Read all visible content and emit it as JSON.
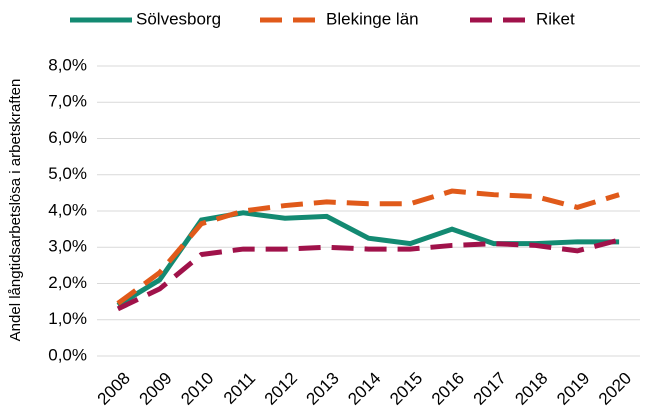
{
  "chart_data": {
    "type": "line",
    "y_label": "Andel långtidsarbetslösa i arbetskraften",
    "categories": [
      "2008",
      "2009",
      "2010",
      "2011",
      "2012",
      "2013",
      "2014",
      "2015",
      "2016",
      "2017",
      "2018",
      "2019",
      "2020"
    ],
    "series": [
      {
        "name": "Sölvesborg",
        "color": "#138a72",
        "dashed": false,
        "values": [
          1.4,
          2.1,
          3.75,
          3.95,
          3.8,
          3.85,
          3.25,
          3.1,
          3.5,
          3.1,
          3.1,
          3.15,
          3.15
        ]
      },
      {
        "name": "Blekinge län",
        "color": "#e05a1a",
        "dashed": true,
        "values": [
          1.45,
          2.3,
          3.65,
          4.0,
          4.15,
          4.25,
          4.2,
          4.2,
          4.55,
          4.45,
          4.4,
          4.1,
          4.45
        ]
      },
      {
        "name": "Riket",
        "color": "#a0124a",
        "dashed": true,
        "values": [
          1.3,
          1.85,
          2.8,
          2.95,
          2.95,
          3.0,
          2.95,
          2.95,
          3.05,
          3.1,
          3.05,
          2.9,
          3.2
        ]
      }
    ],
    "ylim": [
      0,
      8
    ],
    "yticks": [
      {
        "value": 0,
        "label": "0,0%"
      },
      {
        "value": 1,
        "label": "1,0%"
      },
      {
        "value": 2,
        "label": "2,0%"
      },
      {
        "value": 3,
        "label": "3,0%"
      },
      {
        "value": 4,
        "label": "4,0%"
      },
      {
        "value": 5,
        "label": "5,0%"
      },
      {
        "value": 6,
        "label": "6,0%"
      },
      {
        "value": 7,
        "label": "7,0%"
      },
      {
        "value": 8,
        "label": "8,0%"
      }
    ],
    "grid": true,
    "legend": "top"
  }
}
